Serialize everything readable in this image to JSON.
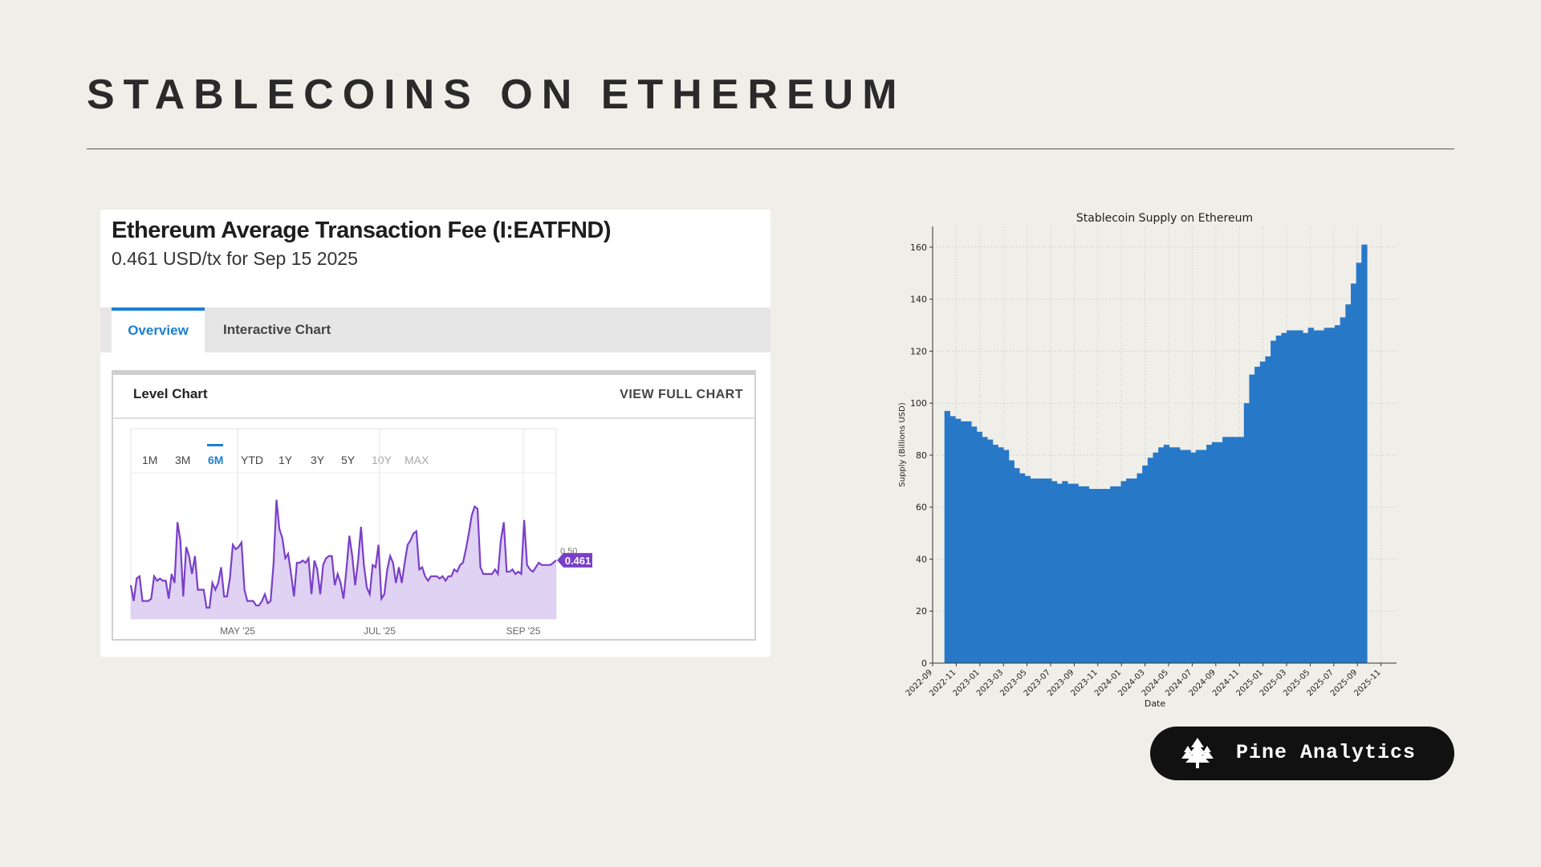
{
  "page": {
    "title": "STABLECOINS ON ETHEREUM"
  },
  "fee_panel": {
    "title": "Ethereum Average Transaction Fee (I:EATFND)",
    "subtitle": "0.461 USD/tx for Sep 15 2025",
    "tabs": [
      {
        "label": "Overview",
        "active": true
      },
      {
        "label": "Interactive Chart",
        "active": false
      }
    ],
    "level_chart_label": "Level Chart",
    "view_full_label": "VIEW FULL CHART",
    "ranges": [
      {
        "label": "1M",
        "state": "normal"
      },
      {
        "label": "3M",
        "state": "normal"
      },
      {
        "label": "6M",
        "state": "active"
      },
      {
        "label": "YTD",
        "state": "normal"
      },
      {
        "label": "1Y",
        "state": "normal"
      },
      {
        "label": "3Y",
        "state": "normal"
      },
      {
        "label": "5Y",
        "state": "normal"
      },
      {
        "label": "10Y",
        "state": "disabled"
      },
      {
        "label": "MAX",
        "state": "disabled"
      }
    ],
    "accent_color": "#1a7fd4",
    "line_color": "#7a3fc9",
    "fill_color": "#dccdf2"
  },
  "brand": {
    "name": "Pine Analytics",
    "icon": "pine-tree-icon"
  },
  "chart_data": [
    {
      "type": "area",
      "title": "",
      "xlabel": "",
      "ylabel": "",
      "x_ticks": [
        "MAY '25",
        "JUL '25",
        "SEP '25"
      ],
      "y_reference_label": "0.50",
      "last_value_label": "0.461",
      "ylim": [
        0.2,
        0.85
      ],
      "values": [
        0.35,
        0.28,
        0.38,
        0.39,
        0.28,
        0.28,
        0.28,
        0.29,
        0.39,
        0.37,
        0.38,
        0.37,
        0.37,
        0.29,
        0.4,
        0.36,
        0.63,
        0.55,
        0.3,
        0.52,
        0.48,
        0.4,
        0.48,
        0.33,
        0.33,
        0.33,
        0.25,
        0.25,
        0.36,
        0.33,
        0.36,
        0.43,
        0.3,
        0.3,
        0.38,
        0.53,
        0.51,
        0.52,
        0.54,
        0.33,
        0.28,
        0.28,
        0.28,
        0.26,
        0.26,
        0.28,
        0.31,
        0.27,
        0.28,
        0.45,
        0.73,
        0.6,
        0.56,
        0.47,
        0.49,
        0.4,
        0.3,
        0.45,
        0.45,
        0.46,
        0.45,
        0.47,
        0.31,
        0.46,
        0.42,
        0.31,
        0.44,
        0.47,
        0.48,
        0.48,
        0.35,
        0.4,
        0.36,
        0.29,
        0.42,
        0.57,
        0.48,
        0.35,
        0.46,
        0.61,
        0.44,
        0.34,
        0.31,
        0.44,
        0.43,
        0.53,
        0.29,
        0.31,
        0.42,
        0.48,
        0.45,
        0.36,
        0.43,
        0.36,
        0.45,
        0.53,
        0.55,
        0.58,
        0.59,
        0.42,
        0.43,
        0.39,
        0.37,
        0.39,
        0.39,
        0.39,
        0.38,
        0.39,
        0.37,
        0.39,
        0.39,
        0.42,
        0.41,
        0.44,
        0.45,
        0.51,
        0.58,
        0.66,
        0.7,
        0.69,
        0.43,
        0.4,
        0.4,
        0.4,
        0.4,
        0.42,
        0.4,
        0.55,
        0.63,
        0.41,
        0.41,
        0.42,
        0.4,
        0.41,
        0.4,
        0.64,
        0.44,
        0.42,
        0.41,
        0.43,
        0.45,
        0.44,
        0.44,
        0.44,
        0.44,
        0.45,
        0.461
      ]
    },
    {
      "type": "bar",
      "title": "Stablecoin Supply on Ethereum",
      "xlabel": "Date",
      "ylabel": "Supply (Billions USD)",
      "ylim": [
        0,
        168
      ],
      "yticks": [
        0,
        20,
        40,
        60,
        80,
        100,
        120,
        140,
        160
      ],
      "x_tick_labels": [
        "2022-09",
        "2022-11",
        "2023-01",
        "2023-03",
        "2023-05",
        "2023-07",
        "2023-09",
        "2023-11",
        "2024-01",
        "2024-03",
        "2024-05",
        "2024-07",
        "2024-09",
        "2024-11",
        "2025-01",
        "2025-03",
        "2025-05",
        "2025-07",
        "2025-09",
        "2025-11"
      ],
      "bar_color": "#2878c8",
      "grid": true,
      "start_month": "2022-10",
      "values": [
        97,
        95,
        94,
        93,
        93,
        91,
        89,
        87,
        86,
        84,
        83,
        82,
        78,
        75,
        73,
        72,
        71,
        71,
        71,
        71,
        70,
        69,
        70,
        69,
        69,
        68,
        68,
        67,
        67,
        67,
        67,
        68,
        68,
        70,
        71,
        71,
        73,
        76,
        79,
        81,
        83,
        84,
        83,
        83,
        82,
        82,
        81,
        82,
        82,
        84,
        85,
        85,
        87,
        87,
        87,
        87,
        100,
        111,
        114,
        116,
        118,
        124,
        126,
        127,
        128,
        128,
        128,
        127,
        129,
        128,
        128,
        129,
        129,
        130,
        133,
        138,
        146,
        154,
        161
      ]
    }
  ]
}
